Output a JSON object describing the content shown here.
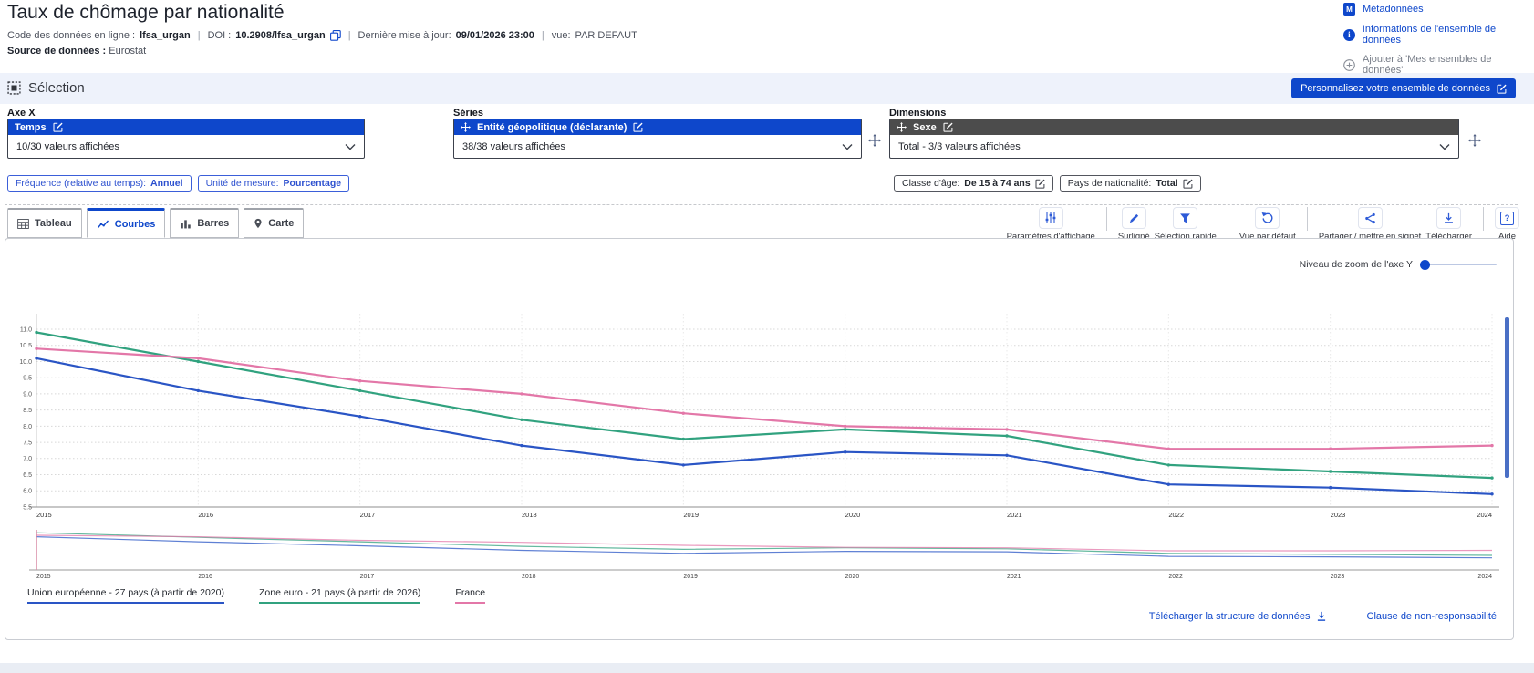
{
  "header": {
    "title": "Taux de chômage par nationalité",
    "meta": {
      "code_label": "Code des données en ligne :",
      "code_value": "lfsa_urgan",
      "doi_label": "DOI :",
      "doi_value": "10.2908/lfsa_urgan",
      "updated_label": "Dernière mise à jour:",
      "updated_value": "09/01/2026 23:00",
      "view_label": "vue:",
      "view_value": "PAR DEFAUT",
      "source_label": "Source de données :",
      "source_value": "Eurostat"
    },
    "links": {
      "metadata": "Métadonnées",
      "dataset_info": "Informations de l'ensemble de données",
      "add_to_my_datasets": "Ajouter à 'Mes ensembles de données'"
    }
  },
  "icons": {
    "metadata_glyph": "M",
    "info_glyph": "i",
    "help_glyph": "?"
  },
  "selection": {
    "title": "Sélection",
    "customize_button": "Personnalisez votre ensemble de données",
    "axis_x": {
      "label": "Axe X",
      "dimension": "Temps",
      "values": "10/30 valeurs affichées"
    },
    "series": {
      "label": "Séries",
      "dimension": "Entité géopolitique (déclarante)",
      "values": "38/38 valeurs affichées"
    },
    "dimensions": {
      "label": "Dimensions",
      "dimension": "Sexe",
      "values": "Total - 3/3 valeurs affichées"
    },
    "filters": [
      {
        "label": "Fréquence (relative au temps):",
        "value": "Annuel"
      },
      {
        "label": "Unité de mesure:",
        "value": "Pourcentage"
      },
      {
        "label": "Classe d'âge:",
        "value": "De 15 à 74 ans"
      },
      {
        "label": "Pays de nationalité:",
        "value": "Total"
      }
    ]
  },
  "tabs": [
    {
      "label": "Tableau",
      "active": false
    },
    {
      "label": "Courbes",
      "active": true
    },
    {
      "label": "Barres",
      "active": false
    },
    {
      "label": "Carte",
      "active": false
    }
  ],
  "toolbar": [
    {
      "name": "display-settings",
      "label": "Paramètres d'affichage"
    },
    {
      "name": "highlight",
      "label": "Surligné"
    },
    {
      "name": "quick-selection",
      "label": "Sélection rapide"
    },
    {
      "name": "default-view",
      "label": "Vue par défaut"
    },
    {
      "name": "share-bookmark",
      "label": "Partager / mettre en signet"
    },
    {
      "name": "download",
      "label": "Télécharger"
    },
    {
      "name": "help",
      "label": "Aide"
    }
  ],
  "chart_ui": {
    "y_zoom_label": "Niveau de zoom de l'axe Y"
  },
  "chart_data": {
    "type": "line",
    "x": [
      2015,
      2016,
      2017,
      2018,
      2019,
      2020,
      2021,
      2022,
      2023,
      2024
    ],
    "series": [
      {
        "name": "Union européenne - 27 pays (à partir de 2020)",
        "color": "#2a55c5",
        "values": [
          10.1,
          9.1,
          8.3,
          7.4,
          6.8,
          7.2,
          7.1,
          6.2,
          6.1,
          5.9
        ]
      },
      {
        "name": "Zone euro - 21 pays (à partir de 2026)",
        "color": "#31a27f",
        "values": [
          10.9,
          10.0,
          9.1,
          8.2,
          7.6,
          7.9,
          7.7,
          6.8,
          6.6,
          6.4
        ]
      },
      {
        "name": "France",
        "color": "#e377a8",
        "values": [
          10.4,
          10.1,
          9.4,
          9.0,
          8.4,
          8.0,
          7.9,
          7.3,
          7.3,
          7.4
        ]
      }
    ],
    "ylim": [
      5.5,
      11.0
    ],
    "ytick_step": 0.5,
    "xlabel": "",
    "ylabel": "",
    "title": "",
    "grid": true,
    "legend_position": "bottom",
    "has_overview_strip": true
  },
  "footer": {
    "download_structure": "Télécharger la structure de données",
    "disclaimer": "Clause de non-responsabilité"
  }
}
